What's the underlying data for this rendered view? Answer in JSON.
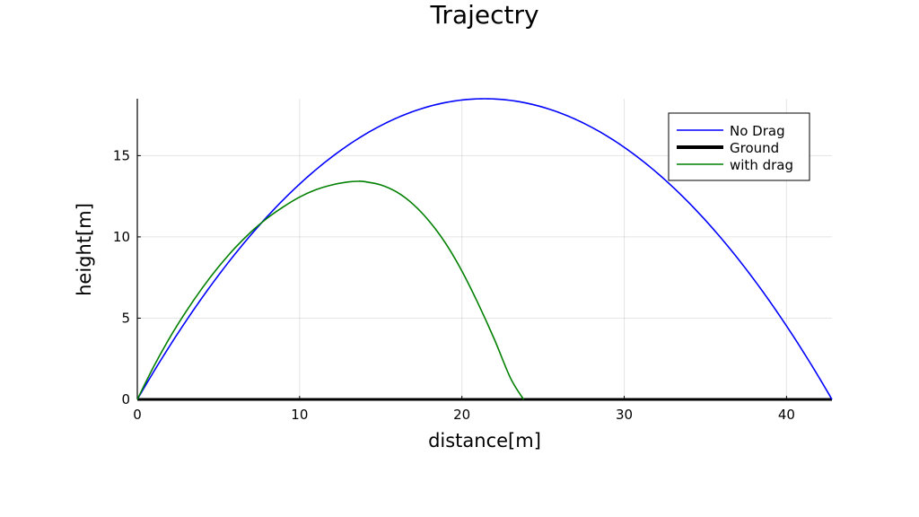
{
  "chart_data": {
    "type": "line",
    "title": "Trajectry",
    "xlabel": "distance[m]",
    "ylabel": "height[m]",
    "xlim": [
      0,
      42.8
    ],
    "ylim": [
      0,
      18.5
    ],
    "xticks": [
      0,
      10,
      20,
      30,
      40
    ],
    "yticks": [
      0,
      5,
      10,
      15
    ],
    "grid": true,
    "legend_position": "top-right",
    "series": [
      {
        "name": "No Drag",
        "color": "#0000ff",
        "style": "parabola",
        "x_range": [
          0,
          42.8
        ],
        "apex": [
          21.4,
          18.5
        ]
      },
      {
        "name": "Ground",
        "color": "#000000",
        "style": "line",
        "x": [
          0,
          42.8
        ],
        "y": [
          0,
          0
        ]
      },
      {
        "name": "with drag",
        "color": "#008000",
        "style": "points",
        "x": [
          0,
          1,
          2,
          3,
          4,
          5,
          6,
          7,
          8,
          9,
          10,
          11,
          12,
          13,
          13.6,
          14,
          15,
          16,
          17,
          18,
          19,
          20,
          21,
          22,
          23,
          23.8
        ],
        "y": [
          0,
          2.0,
          3.8,
          5.4,
          6.85,
          8.15,
          9.3,
          10.3,
          11.15,
          11.85,
          12.45,
          12.9,
          13.2,
          13.38,
          13.42,
          13.4,
          13.2,
          12.75,
          12.0,
          10.95,
          9.6,
          7.9,
          5.9,
          3.7,
          1.3,
          0
        ]
      }
    ]
  }
}
